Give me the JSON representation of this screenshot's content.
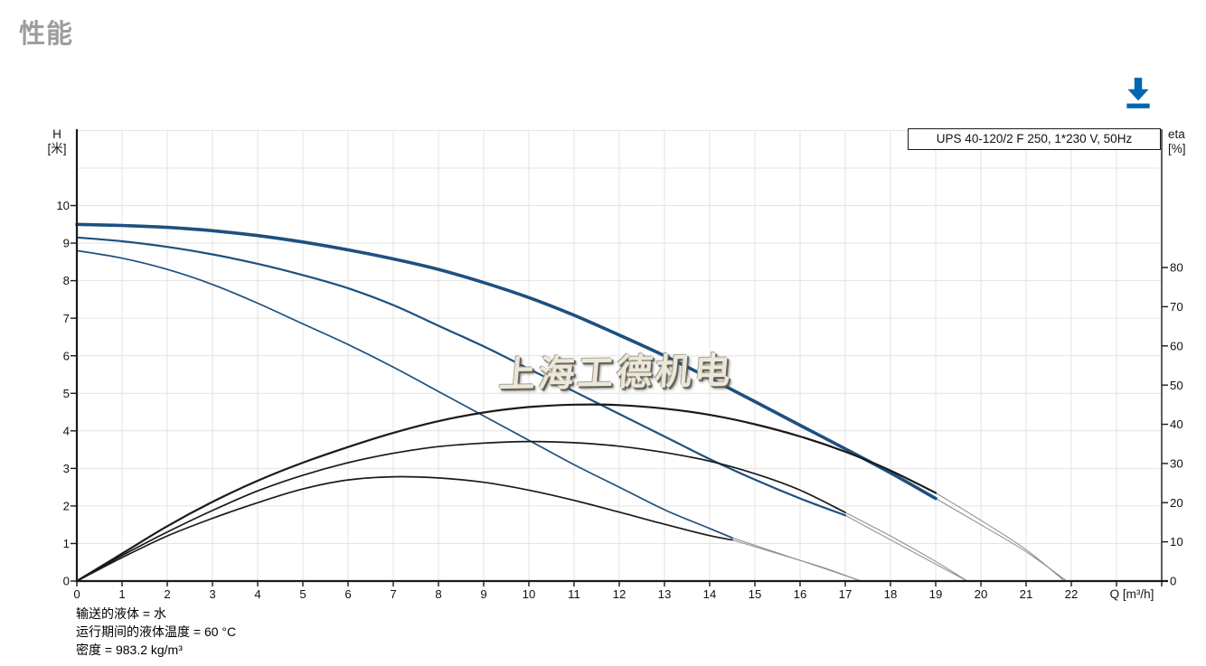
{
  "page": {
    "title": "性能"
  },
  "toolbar": {
    "download_icon": "download-arrow",
    "download_color": "#0067b2"
  },
  "watermark": {
    "text": "上海工德机电"
  },
  "footnotes": {
    "pumped_liquid": "输送的液体 = 水",
    "liquid_temperature": "运行期间的液体温度 = 60 °C",
    "density": "密度 = 983.2 kg/m³"
  },
  "chart_data": {
    "type": "line",
    "title": "UPS 40-120/2 F 250, 1*230 V, 50Hz",
    "grid": true,
    "legend_position": "none",
    "x_axis": {
      "label": "Q [m³/h]",
      "min": 0,
      "max": 24,
      "grid_step": 1,
      "tick_labels": [
        0,
        1,
        2,
        3,
        4,
        5,
        6,
        7,
        8,
        9,
        10,
        11,
        12,
        13,
        14,
        15,
        16,
        17,
        18,
        19,
        20,
        21,
        22
      ]
    },
    "y_left_axis": {
      "label": [
        "H",
        "[米]"
      ],
      "unit": "m",
      "min": 0,
      "max": 12,
      "tick_labels": [
        0,
        1,
        2,
        3,
        4,
        5,
        6,
        7,
        8,
        9,
        10
      ]
    },
    "y_right_axis": {
      "label": [
        "eta",
        "[%]"
      ],
      "unit": "%",
      "min": 0,
      "max": 115,
      "tick_labels": [
        0,
        10,
        20,
        30,
        40,
        50,
        60,
        70,
        80
      ]
    },
    "colors": {
      "head_curve": "#1d5080",
      "eta_curve": "#1a1a1a",
      "head_extension": "#8593a6",
      "eta_extension": "#919191",
      "grid": "#e3e3e3",
      "axis": "#1a1a1a"
    },
    "series": [
      {
        "name": "speed1-head-extension",
        "axis": "H",
        "weight": "hair",
        "color": "#8593a6",
        "points": [
          [
            14.5,
            1.15
          ],
          [
            15.5,
            0.75
          ],
          [
            16.5,
            0.35
          ],
          [
            17.35,
            0
          ]
        ]
      },
      {
        "name": "speed2-head-extension",
        "axis": "H",
        "weight": "hair",
        "color": "#8593a6",
        "points": [
          [
            17,
            1.75
          ],
          [
            18,
            1.1
          ],
          [
            19,
            0.45
          ],
          [
            19.7,
            0
          ]
        ]
      },
      {
        "name": "speed3-head-extension",
        "axis": "H",
        "weight": "hair",
        "color": "#8593a6",
        "points": [
          [
            19,
            2.2
          ],
          [
            20,
            1.5
          ],
          [
            21,
            0.78
          ],
          [
            21.9,
            0
          ]
        ]
      },
      {
        "name": "speed1-eta-extension",
        "axis": "eta",
        "weight": "hair",
        "color": "#919191",
        "points": [
          [
            14.5,
            10.5
          ],
          [
            15.5,
            7
          ],
          [
            16.5,
            3.5
          ],
          [
            17.35,
            0
          ]
        ]
      },
      {
        "name": "speed2-eta-extension",
        "axis": "eta",
        "weight": "hair",
        "color": "#919191",
        "points": [
          [
            17,
            17.5
          ],
          [
            18,
            11.5
          ],
          [
            19,
            5
          ],
          [
            19.7,
            0
          ]
        ]
      },
      {
        "name": "speed3-eta-extension",
        "axis": "eta",
        "weight": "hair",
        "color": "#919191",
        "points": [
          [
            19,
            22.5
          ],
          [
            20,
            15.5
          ],
          [
            21,
            8
          ],
          [
            21.85,
            0
          ]
        ]
      },
      {
        "name": "speed1-head",
        "axis": "H",
        "weight": "light",
        "color": "#1d5080",
        "points": [
          [
            0,
            8.8
          ],
          [
            1,
            8.6
          ],
          [
            2,
            8.3
          ],
          [
            3,
            7.9
          ],
          [
            4,
            7.4
          ],
          [
            5,
            6.85
          ],
          [
            6,
            6.3
          ],
          [
            7,
            5.7
          ],
          [
            8,
            5.05
          ],
          [
            9,
            4.4
          ],
          [
            10,
            3.75
          ],
          [
            11,
            3.1
          ],
          [
            12,
            2.5
          ],
          [
            13,
            1.9
          ],
          [
            14,
            1.4
          ],
          [
            14.5,
            1.15
          ]
        ]
      },
      {
        "name": "speed2-head",
        "axis": "H",
        "weight": "medium",
        "color": "#1d5080",
        "points": [
          [
            0,
            9.15
          ],
          [
            1,
            9.05
          ],
          [
            2,
            8.9
          ],
          [
            3,
            8.7
          ],
          [
            4,
            8.45
          ],
          [
            5,
            8.15
          ],
          [
            6,
            7.8
          ],
          [
            7,
            7.35
          ],
          [
            8,
            6.8
          ],
          [
            9,
            6.25
          ],
          [
            10,
            5.65
          ],
          [
            11,
            5.05
          ],
          [
            12,
            4.45
          ],
          [
            13,
            3.85
          ],
          [
            14,
            3.25
          ],
          [
            15,
            2.7
          ],
          [
            16,
            2.2
          ],
          [
            17,
            1.75
          ]
        ]
      },
      {
        "name": "speed3-head",
        "axis": "H",
        "weight": "bold",
        "color": "#1d5080",
        "points": [
          [
            0,
            9.5
          ],
          [
            1,
            9.47
          ],
          [
            2,
            9.42
          ],
          [
            3,
            9.33
          ],
          [
            4,
            9.2
          ],
          [
            5,
            9.03
          ],
          [
            6,
            8.82
          ],
          [
            7,
            8.58
          ],
          [
            8,
            8.3
          ],
          [
            9,
            7.95
          ],
          [
            10,
            7.55
          ],
          [
            11,
            7.08
          ],
          [
            12,
            6.55
          ],
          [
            13,
            6.0
          ],
          [
            14,
            5.4
          ],
          [
            15,
            4.78
          ],
          [
            16,
            4.15
          ],
          [
            17,
            3.52
          ],
          [
            18,
            2.88
          ],
          [
            19,
            2.2
          ]
        ]
      },
      {
        "name": "speed1-eta",
        "axis": "eta",
        "weight": "light",
        "color": "#1a1a1a",
        "points": [
          [
            0,
            0
          ],
          [
            1,
            6
          ],
          [
            2,
            11.5
          ],
          [
            3,
            16
          ],
          [
            4,
            20
          ],
          [
            5,
            23.5
          ],
          [
            6,
            25.8
          ],
          [
            7,
            26.6
          ],
          [
            8,
            26.3
          ],
          [
            9,
            25.2
          ],
          [
            10,
            23.2
          ],
          [
            11,
            20.6
          ],
          [
            12,
            17.6
          ],
          [
            13,
            14.5
          ],
          [
            14,
            11.6
          ],
          [
            14.5,
            10.5
          ]
        ]
      },
      {
        "name": "speed2-eta",
        "axis": "eta",
        "weight": "light",
        "color": "#1a1a1a",
        "points": [
          [
            0,
            0
          ],
          [
            1,
            6.5
          ],
          [
            2,
            12.5
          ],
          [
            3,
            18
          ],
          [
            4,
            23
          ],
          [
            5,
            27
          ],
          [
            6,
            30.2
          ],
          [
            7,
            32.6
          ],
          [
            8,
            34.3
          ],
          [
            9,
            35.2
          ],
          [
            10,
            35.6
          ],
          [
            11,
            35.3
          ],
          [
            12,
            34.4
          ],
          [
            13,
            32.8
          ],
          [
            14,
            30.6
          ],
          [
            15,
            27.4
          ],
          [
            16,
            23.2
          ],
          [
            17,
            17.5
          ]
        ]
      },
      {
        "name": "speed3-eta",
        "axis": "eta",
        "weight": "medium",
        "color": "#1a1a1a",
        "points": [
          [
            0,
            0
          ],
          [
            1,
            7
          ],
          [
            2,
            14
          ],
          [
            3,
            20.2
          ],
          [
            4,
            25.6
          ],
          [
            5,
            30.2
          ],
          [
            6,
            34.2
          ],
          [
            7,
            37.8
          ],
          [
            8,
            40.8
          ],
          [
            9,
            43
          ],
          [
            10,
            44.4
          ],
          [
            11,
            45
          ],
          [
            12,
            44.9
          ],
          [
            13,
            44
          ],
          [
            14,
            42.4
          ],
          [
            15,
            40
          ],
          [
            16,
            36.9
          ],
          [
            17,
            33
          ],
          [
            18,
            28.2
          ],
          [
            19,
            22.5
          ]
        ]
      }
    ]
  }
}
